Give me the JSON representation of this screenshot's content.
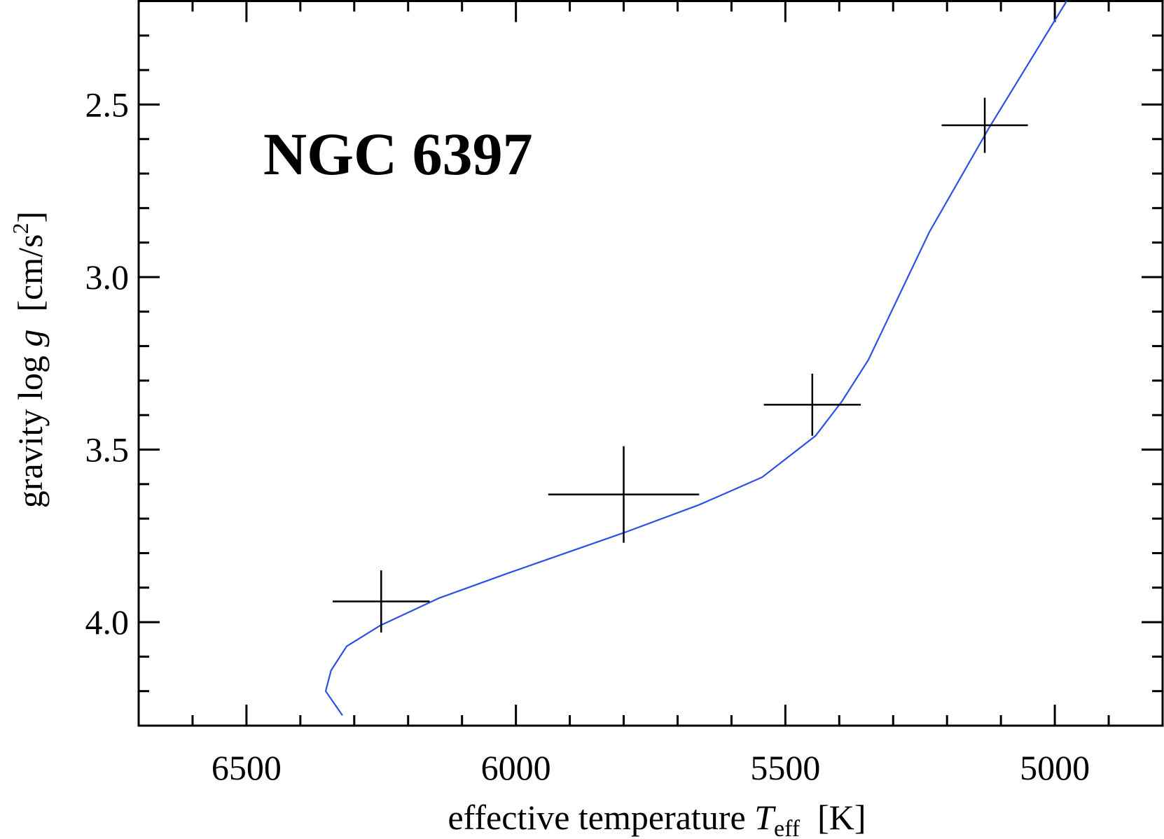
{
  "chart_data": {
    "type": "scatter",
    "annotation": "NGC 6397",
    "xlabel": [
      "effective temperature ",
      "T",
      "eff",
      "  [K]"
    ],
    "ylabel": [
      "gravity log ",
      "g",
      "  [cm/s",
      "2",
      "]"
    ],
    "xlim": [
      6700,
      4800
    ],
    "ylim": [
      4.3,
      2.2
    ],
    "xticks": [
      6500,
      6000,
      5500,
      5000
    ],
    "xminorticks": [
      6600,
      6400,
      6300,
      6200,
      6100,
      5900,
      5800,
      5700,
      5600,
      5400,
      5300,
      5200,
      5100,
      4900
    ],
    "yticks": [
      {
        "value": 2.5,
        "label": "2.5"
      },
      {
        "value": 3,
        "label": "3.0"
      },
      {
        "value": 3.5,
        "label": "3.5"
      },
      {
        "value": 4,
        "label": "4.0"
      }
    ],
    "yminorticks": [
      2.3,
      2.4,
      2.6,
      2.7,
      2.8,
      2.9,
      3.1,
      3.2,
      3.3,
      3.4,
      3.6,
      3.7,
      3.8,
      3.9,
      4.1,
      4.2
    ],
    "series": [
      {
        "type": "line",
        "color": "#2b50e6",
        "x": [
          6322,
          6353,
          6343,
          6314,
          6252,
          6142,
          6018,
          5798,
          5660,
          5543,
          5444,
          5395,
          5346,
          5233,
          5123,
          4978
        ],
        "values": [
          4.27,
          4.2,
          4.14,
          4.07,
          4.01,
          3.93,
          3.86,
          3.74,
          3.66,
          3.58,
          3.46,
          3.36,
          3.24,
          2.87,
          2.57,
          2.2
        ]
      },
      {
        "type": "errorbar",
        "color": "#000000",
        "x": [
          6250,
          5800,
          5450,
          5130
        ],
        "values": [
          3.94,
          3.63,
          3.37,
          2.56
        ],
        "xerr": [
          90,
          140,
          90,
          80
        ],
        "yerr": [
          0.09,
          0.14,
          0.09,
          0.08
        ]
      }
    ]
  }
}
